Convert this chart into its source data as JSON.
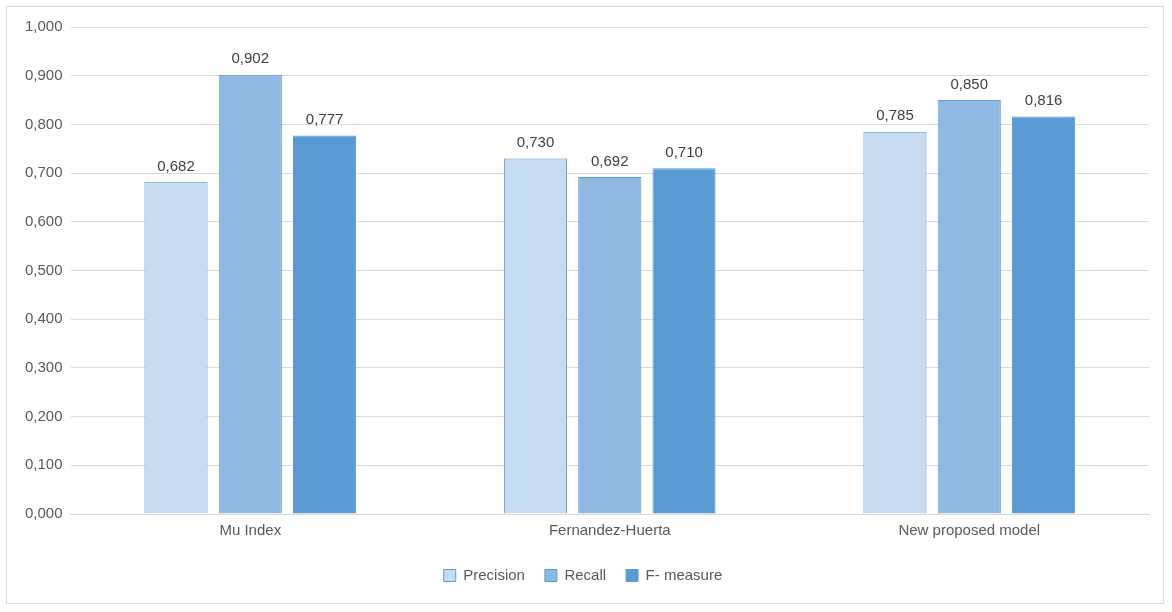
{
  "chart_data": {
    "type": "bar",
    "categories": [
      "Mu Index",
      "Fernandez-Huerta",
      "New proposed model"
    ],
    "series": [
      {
        "name": "Precision",
        "color": "#c5dbf0",
        "values": [
          0.682,
          0.73,
          0.785
        ],
        "value_labels": [
          "0,682",
          "0,730",
          "0,785"
        ]
      },
      {
        "name": "Recall",
        "color": "#8fb9e3",
        "values": [
          0.902,
          0.692,
          0.85
        ],
        "value_labels": [
          "0,902",
          "0,692",
          "0,850"
        ]
      },
      {
        "name": "F- measure",
        "color": "#5b9bd5",
        "values": [
          0.777,
          0.71,
          0.816
        ],
        "value_labels": [
          "0,777",
          "0,710",
          "0,816"
        ]
      }
    ],
    "ylim": [
      0,
      1
    ],
    "yticks": [
      {
        "value": 0,
        "label": "0,000"
      },
      {
        "value": 0.1,
        "label": "0,100"
      },
      {
        "value": 0.2,
        "label": "0,200"
      },
      {
        "value": 0.3,
        "label": "0,300"
      },
      {
        "value": 0.4,
        "label": "0,400"
      },
      {
        "value": 0.5,
        "label": "0,500"
      },
      {
        "value": 0.6,
        "label": "0,600"
      },
      {
        "value": 0.7,
        "label": "0,700"
      },
      {
        "value": 0.8,
        "label": "0,800"
      },
      {
        "value": 0.9,
        "label": "0,900"
      },
      {
        "value": 1,
        "label": "1,000"
      }
    ],
    "grid": "y",
    "legend": "bottom"
  }
}
